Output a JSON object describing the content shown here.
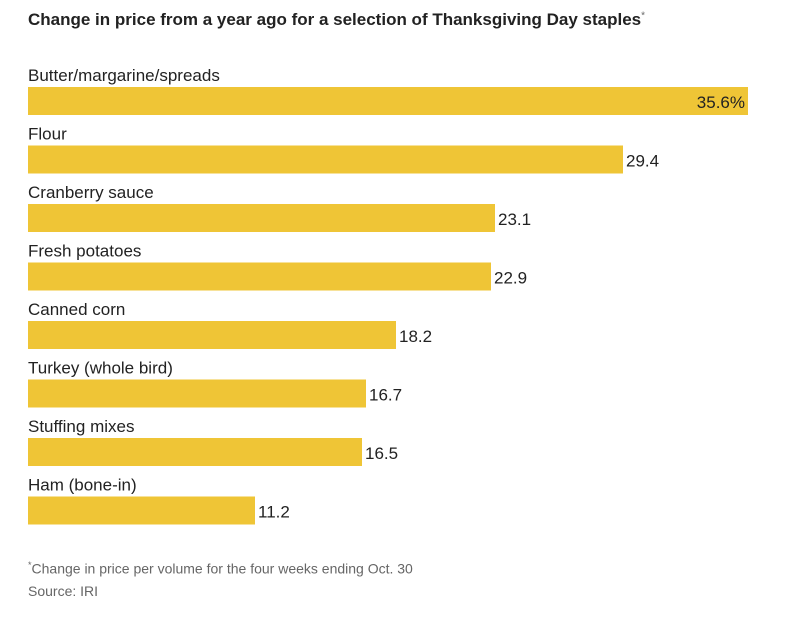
{
  "chart_data": {
    "type": "bar",
    "orientation": "horizontal",
    "title": "Change in price from a year ago for a selection of Thanksgiving Day staples",
    "title_marker": "*",
    "categories": [
      "Butter/margarine/spreads",
      "Flour",
      "Cranberry sauce",
      "Fresh potatoes",
      "Canned corn",
      "Turkey (whole bird)",
      "Stuffing mixes",
      "Ham (bone-in)"
    ],
    "values": [
      35.6,
      29.4,
      23.1,
      22.9,
      18.2,
      16.7,
      16.5,
      11.2
    ],
    "value_labels": [
      "35.6%",
      "29.4",
      "23.1",
      "22.9",
      "18.2",
      "16.7",
      "16.5",
      "11.2"
    ],
    "xlim": [
      0,
      35.6
    ],
    "bar_color": "#efc536",
    "xlabel": "",
    "ylabel": "",
    "grid": false
  },
  "footnote": {
    "marker": "*",
    "text": "Change in price per volume for the four weeks ending Oct. 30",
    "source": "Source: IRI"
  }
}
